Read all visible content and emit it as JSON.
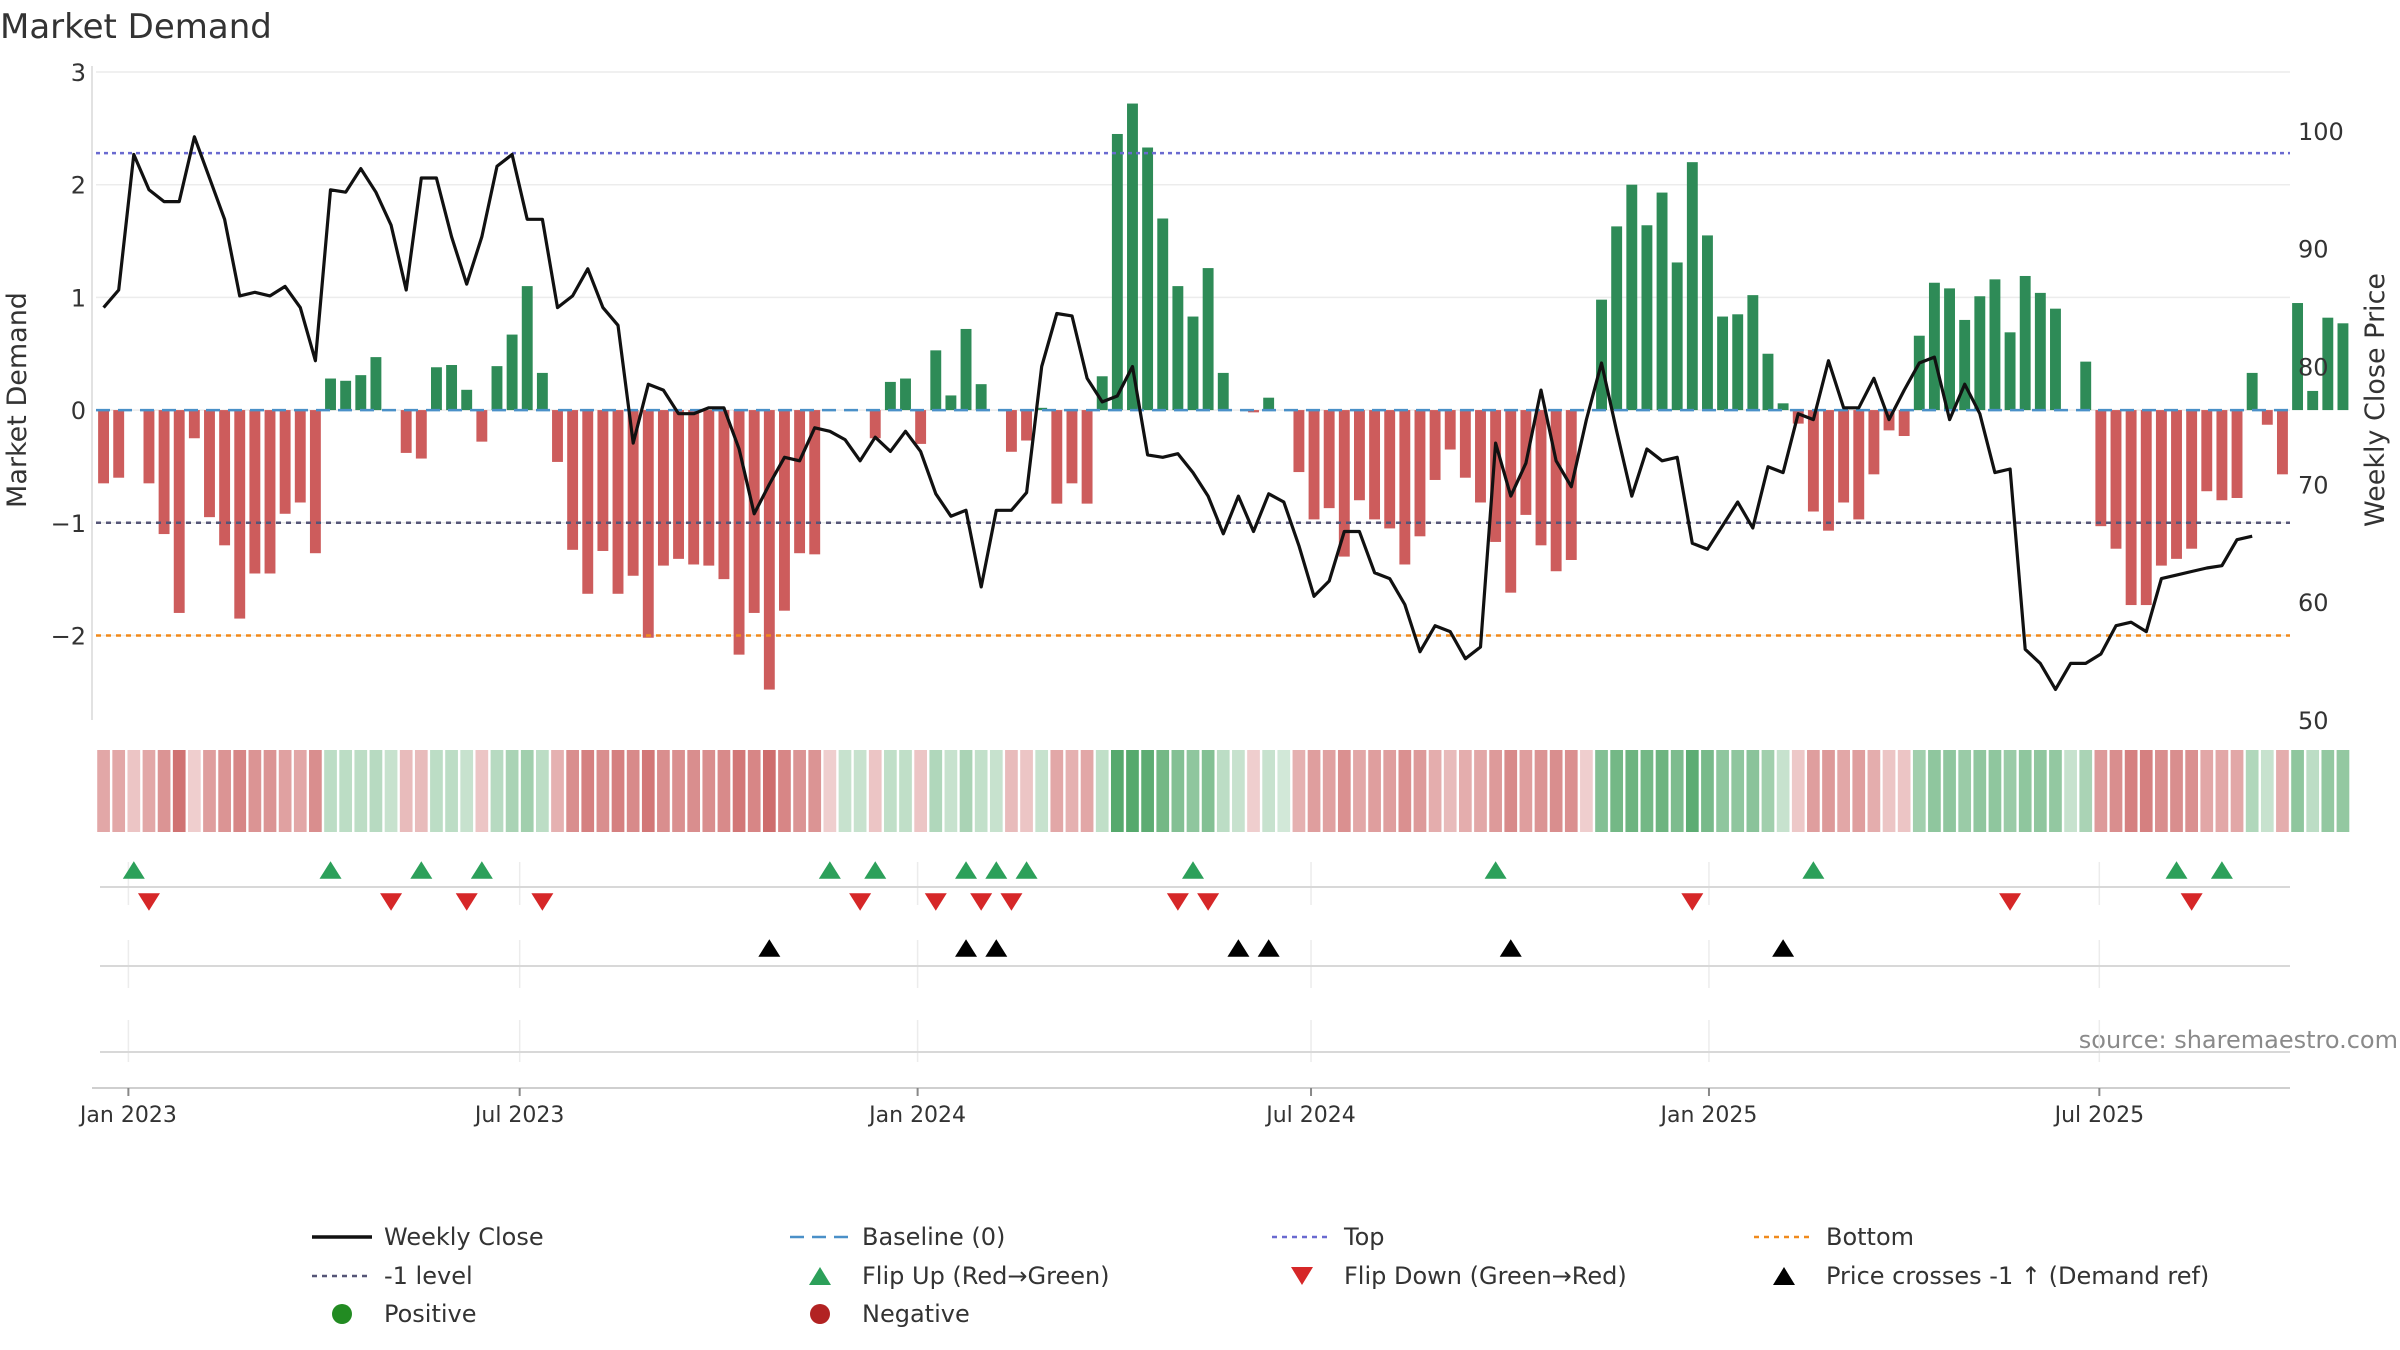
{
  "chart_data": {
    "type": "bar+line",
    "title": "Market Demand",
    "ylabel_left": "Market Demand",
    "ylabel_right": "Weekly Close Price",
    "ylim_left": [
      -2.75,
      3.0
    ],
    "ylim_right": [
      50,
      105
    ],
    "yticks_left": [
      3,
      2,
      1,
      0,
      -1,
      -2
    ],
    "yticks_left_labels": [
      "3",
      "2",
      "1",
      "0",
      "−1",
      "−2"
    ],
    "yticks_right": [
      100,
      90,
      80,
      70,
      60,
      50
    ],
    "yticks_right_labels": [
      "100",
      "90",
      "80",
      "70",
      "60",
      "50"
    ],
    "x_start": "2022-12-19",
    "weeks": 145,
    "xticks": [
      {
        "label": "Jan 2023",
        "week": 2.14
      },
      {
        "label": "Jul 2023",
        "week": 28.0
      },
      {
        "label": "Jan 2024",
        "week": 54.3
      },
      {
        "label": "Jul 2024",
        "week": 80.3
      },
      {
        "label": "Jan 2025",
        "week": 106.6
      },
      {
        "label": "Jul 2025",
        "week": 132.4
      }
    ],
    "reference_lines": {
      "top": 2.28,
      "minus_one": -1.0,
      "bottom": -2.0,
      "baseline": 0
    },
    "market_demand": [
      -0.65,
      -0.6,
      0,
      -0.65,
      -1.1,
      -1.8,
      -0.25,
      -0.95,
      -1.2,
      -1.85,
      -1.45,
      -1.45,
      -0.92,
      -0.82,
      -1.27,
      0.28,
      0.26,
      0.31,
      0.47,
      0,
      -0.38,
      -0.43,
      0.38,
      0.4,
      0.18,
      -0.28,
      0.39,
      0.67,
      1.1,
      0.33,
      -0.46,
      -1.24,
      -1.63,
      -1.25,
      -1.63,
      -1.47,
      -2.02,
      -1.38,
      -1.32,
      -1.37,
      -1.38,
      -1.5,
      -2.17,
      -1.8,
      -2.48,
      -1.78,
      -1.27,
      -1.28,
      0,
      0,
      0,
      -0.25,
      0.25,
      0.28,
      -0.3,
      0.53,
      0.13,
      0.72,
      0.23,
      0,
      -0.37,
      -0.27,
      0.02,
      -0.83,
      -0.65,
      -0.83,
      0.3,
      2.45,
      2.72,
      2.33,
      1.7,
      1.1,
      0.83,
      1.26,
      0.33,
      0,
      -0.02,
      0.11,
      0,
      -0.55,
      -0.97,
      -0.87,
      -1.3,
      -0.8,
      -0.97,
      -1.05,
      -1.37,
      -1.12,
      -0.62,
      -0.35,
      -0.6,
      -0.82,
      -1.17,
      -1.62,
      -0.93,
      -1.2,
      -1.43,
      -1.33,
      0,
      0.98,
      1.63,
      2.0,
      1.64,
      1.93,
      1.31,
      2.2,
      1.55,
      0.83,
      0.85,
      1.02,
      0.5,
      0.06,
      -0.12,
      -0.9,
      -1.07,
      -0.82,
      -0.97,
      -0.57,
      -0.18,
      -0.23,
      0.66,
      1.13,
      1.08,
      0.8,
      1.01,
      1.16,
      0.69,
      1.19,
      1.04,
      0.9,
      0,
      0.43,
      -1.03,
      -1.23,
      -1.73,
      -1.73,
      -1.38,
      -1.32,
      -1.23,
      -0.72,
      -0.8,
      -0.78,
      0.33,
      -0.13,
      -0.57,
      0.95,
      0.17,
      0.82,
      0.77
    ],
    "weekly_close": [
      85,
      86.5,
      98,
      95,
      94,
      94,
      99.5,
      96,
      92.5,
      86,
      86.3,
      86,
      86.8,
      85,
      80.5,
      95,
      94.8,
      96.8,
      94.8,
      92,
      86.5,
      96,
      96,
      91,
      87,
      91,
      97,
      98,
      92.5,
      92.5,
      85,
      86,
      88.3,
      85,
      83.5,
      73.5,
      78.5,
      78,
      76,
      76,
      76.5,
      76.5,
      73,
      67.5,
      70,
      72.3,
      72,
      74.8,
      74.5,
      73.8,
      72,
      74,
      72.8,
      74.5,
      72.8,
      69.2,
      67.3,
      67.8,
      61.3,
      67.8,
      67.8,
      69.3,
      80,
      84.5,
      84.3,
      79,
      77,
      77.5,
      80,
      72.5,
      72.3,
      72.6,
      71,
      69,
      65.8,
      69,
      66,
      69.2,
      68.5,
      64.8,
      60.5,
      61.8,
      66,
      66,
      62.5,
      62,
      59.8,
      55.8,
      58,
      57.5,
      55.2,
      56.2,
      73.5,
      69,
      71.8,
      78,
      72,
      69.8,
      75.5,
      80.3,
      74.5,
      69,
      73,
      72,
      72.3,
      65,
      64.5,
      66.5,
      68.5,
      66.3,
      71.5,
      71,
      76,
      75.5,
      80.5,
      76.5,
      76.5,
      79,
      75.5,
      78,
      80.3,
      80.8,
      75.5,
      78.5,
      76,
      71,
      71.3,
      56,
      54.8,
      52.6,
      54.8,
      54.8,
      55.6,
      58,
      58.3,
      57.5,
      62,
      62.3,
      62.6,
      62.9,
      63.1,
      65.3,
      65.6
    ],
    "strip_intensity": [
      -0.45,
      -0.45,
      -0.3,
      -0.45,
      -0.55,
      -0.72,
      -0.25,
      -0.5,
      -0.55,
      -0.62,
      -0.55,
      -0.55,
      -0.48,
      -0.45,
      -0.58,
      0.3,
      0.3,
      0.3,
      0.32,
      0.25,
      -0.35,
      -0.35,
      0.3,
      0.3,
      0.25,
      -0.3,
      0.32,
      0.38,
      0.42,
      0.3,
      -0.4,
      -0.58,
      -0.65,
      -0.58,
      -0.65,
      -0.6,
      -0.7,
      -0.58,
      -0.57,
      -0.58,
      -0.58,
      -0.6,
      -0.7,
      -0.62,
      -0.75,
      -0.62,
      -0.55,
      -0.55,
      -0.25,
      0.25,
      0.25,
      -0.3,
      0.28,
      0.28,
      -0.3,
      0.35,
      0.25,
      0.38,
      0.27,
      0.25,
      -0.35,
      -0.3,
      0.25,
      -0.45,
      -0.4,
      -0.45,
      0.28,
      0.75,
      0.75,
      0.72,
      0.62,
      0.55,
      0.5,
      0.55,
      0.3,
      0.25,
      -0.25,
      0.25,
      0.2,
      -0.4,
      -0.5,
      -0.48,
      -0.57,
      -0.45,
      -0.5,
      -0.5,
      -0.57,
      -0.52,
      -0.42,
      -0.35,
      -0.42,
      -0.45,
      -0.52,
      -0.6,
      -0.5,
      -0.55,
      -0.58,
      -0.57,
      -0.25,
      0.55,
      0.62,
      0.65,
      0.62,
      0.65,
      0.58,
      0.72,
      0.6,
      0.5,
      0.5,
      0.52,
      0.42,
      0.25,
      -0.28,
      -0.5,
      -0.52,
      -0.45,
      -0.5,
      -0.42,
      -0.3,
      -0.3,
      0.42,
      0.5,
      0.5,
      0.45,
      0.5,
      0.5,
      0.45,
      0.5,
      0.5,
      0.48,
      0.25,
      0.38,
      -0.52,
      -0.58,
      -0.65,
      -0.65,
      -0.58,
      -0.58,
      -0.57,
      -0.45,
      -0.45,
      -0.45,
      0.35,
      0.25,
      -0.42,
      0.5,
      0.3,
      0.48,
      0.48
    ],
    "flip_up_weeks": [
      2,
      15,
      21,
      25,
      48,
      51,
      57,
      59,
      61,
      72,
      92,
      113,
      137,
      140
    ],
    "flip_down_weeks": [
      3,
      19,
      24,
      29,
      50,
      55,
      58,
      60,
      71,
      73,
      105,
      126,
      138
    ],
    "price_cross_weeks": [
      44,
      57,
      59,
      75,
      77,
      93,
      111
    ],
    "source_text": "source: sharemaestro.com",
    "legend": [
      {
        "key": "weekly_close",
        "label": "Weekly Close",
        "style": "line"
      },
      {
        "key": "baseline",
        "label": "Baseline (0)",
        "style": "dash"
      },
      {
        "key": "top",
        "label": "Top",
        "style": "dot"
      },
      {
        "key": "bottom",
        "label": "Bottom",
        "style": "dot"
      },
      {
        "key": "minus_one",
        "label": "-1 level",
        "style": "dot"
      },
      {
        "key": "flip_up",
        "label": "Flip Up (Red→Green)",
        "style": "tri-up"
      },
      {
        "key": "flip_down",
        "label": "Flip Down (Green→Red)",
        "style": "tri-down"
      },
      {
        "key": "price_cross",
        "label": "Price crosses -1 ↑ (Demand ref)",
        "style": "tri-up"
      },
      {
        "key": "positive",
        "label": "Positive",
        "style": "circle"
      },
      {
        "key": "negative",
        "label": "Negative",
        "style": "circle"
      }
    ],
    "colors": {
      "positive_bar": "#2e8b57",
      "negative_bar": "#cd5c5c",
      "price_line": "#111111",
      "baseline": "#4a90c8",
      "top": "#6a6ad0",
      "minus_one": "#555577",
      "bottom": "#f08a1c",
      "flip_up": "#2ca05a",
      "flip_down": "#d62728",
      "price_cross": "#000000",
      "positive_dot": "#228b22",
      "negative_dot": "#b22222"
    }
  }
}
